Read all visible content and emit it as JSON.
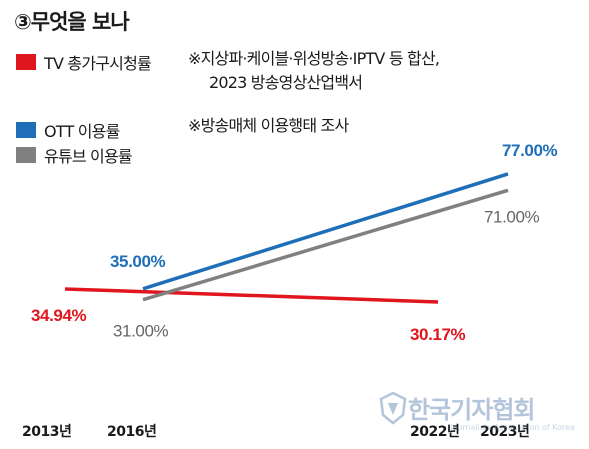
{
  "title": "③무엇을 보나",
  "legend": [
    {
      "label": "TV 총가구시청률",
      "color": "#e0161e"
    },
    {
      "label": "OTT 이용률",
      "color": "#1e6fb8"
    },
    {
      "label": "유튜브 이용률",
      "color": "#808080"
    }
  ],
  "notes": {
    "tv_source_line1": "※지상파·케이블·위성방송·IPTV 등 합산,",
    "tv_source_line2": "2023 방송영상산업백서",
    "ott_source": "※방송매체 이용행태 조사"
  },
  "watermark": {
    "text": "한국기자협회",
    "sub": "Journalists Association of Korea"
  },
  "chart_data": {
    "type": "line",
    "x": [
      "2013년",
      "2016년",
      "2022년",
      "2023년"
    ],
    "series": [
      {
        "name": "TV 총가구시청률",
        "color": "#e0161e",
        "points": [
          {
            "x": "2013년",
            "y": 34.94
          },
          {
            "x": "2022년",
            "y": 30.17
          }
        ],
        "labels": [
          "34.94%",
          "30.17%"
        ]
      },
      {
        "name": "OTT 이용률",
        "color": "#1e6fb8",
        "points": [
          {
            "x": "2016년",
            "y": 35.0
          },
          {
            "x": "2023년",
            "y": 77.0
          }
        ],
        "labels": [
          "35.00%",
          "77.00%"
        ]
      },
      {
        "name": "유튜브 이용률",
        "color": "#808080",
        "points": [
          {
            "x": "2016년",
            "y": 31.0
          },
          {
            "x": "2023년",
            "y": 71.0
          }
        ],
        "labels": [
          "31.00%",
          "71.00%"
        ]
      }
    ],
    "axes": false,
    "grid": false
  }
}
